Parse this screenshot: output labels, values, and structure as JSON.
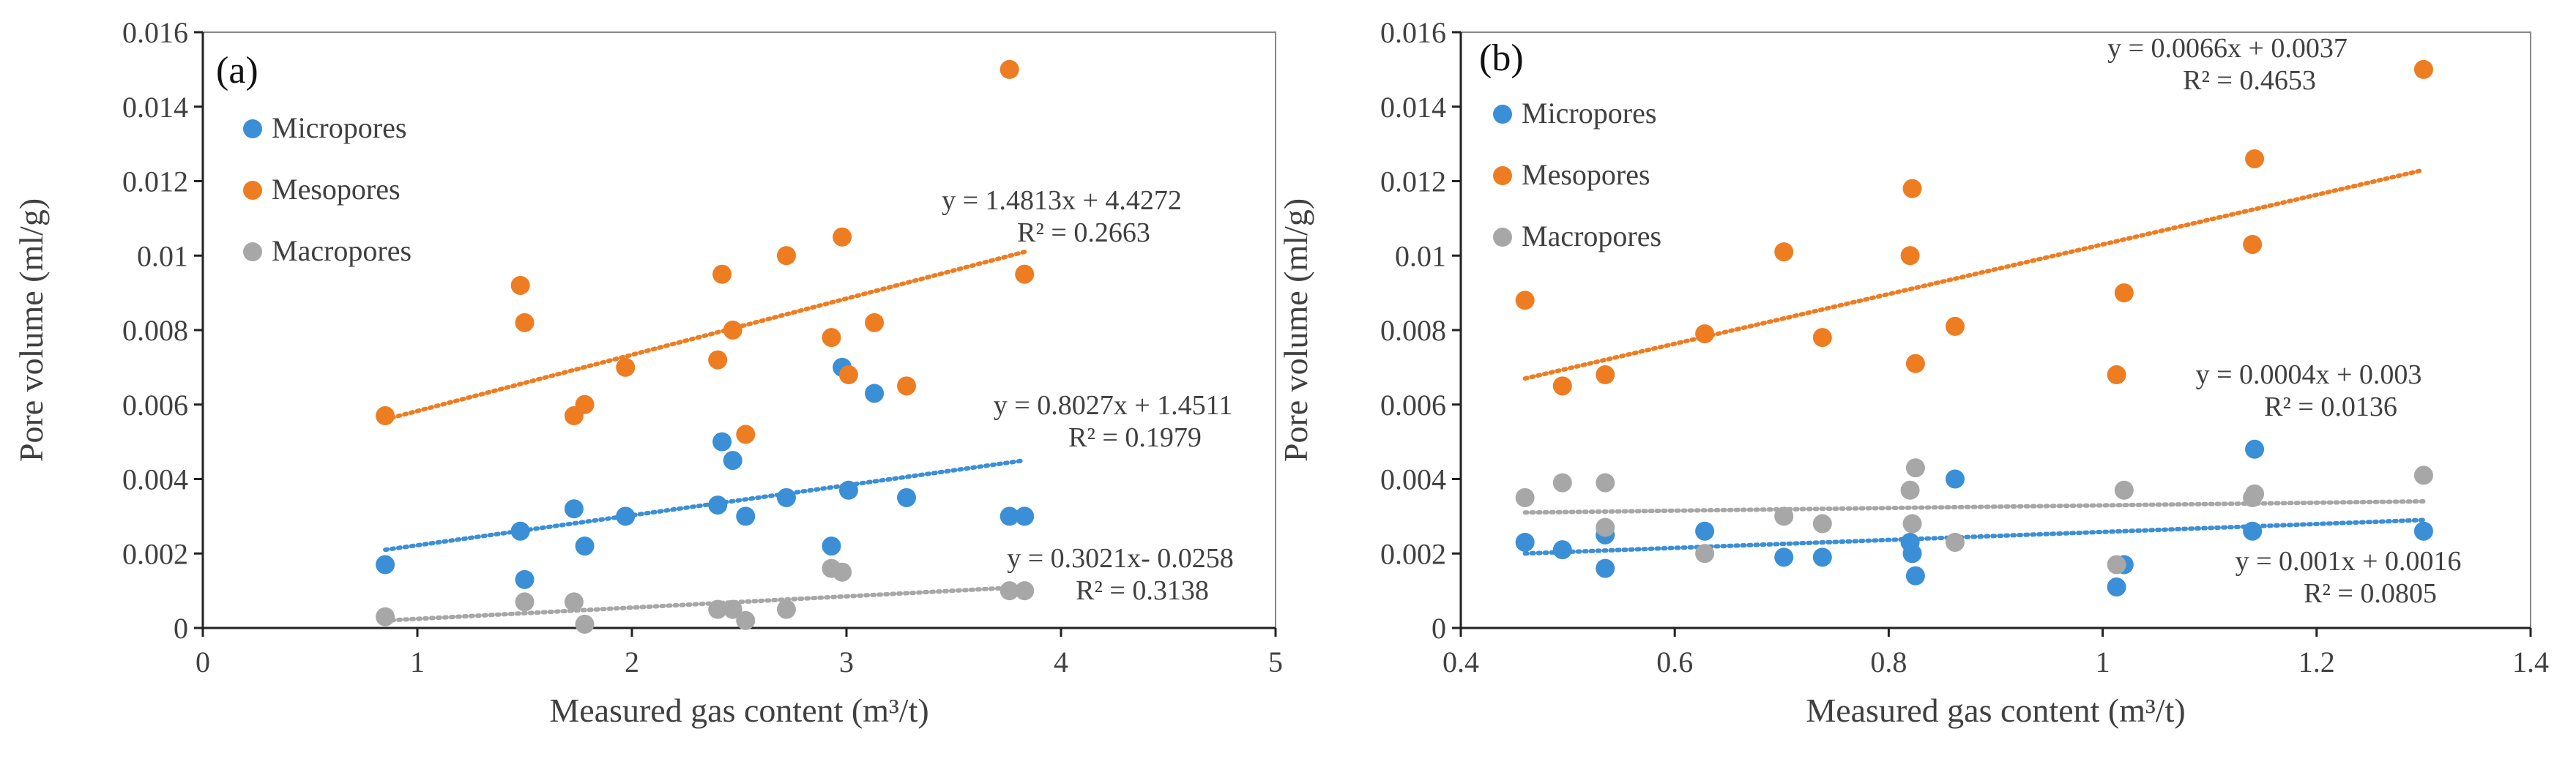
{
  "chart_data": [
    {
      "type": "scatter",
      "panel_label": "(a)",
      "xlabel": "Measured gas content (m³/t)",
      "ylabel": "Pore volume (ml/g)",
      "xlim": [
        0,
        5
      ],
      "ylim": [
        0,
        0.016
      ],
      "x_ticks": [
        0,
        1,
        2,
        3,
        4,
        5
      ],
      "x_tick_labels": [
        "0",
        "1",
        "2",
        "3",
        "4",
        "5"
      ],
      "y_ticks": [
        0,
        0.002,
        0.004,
        0.006,
        0.008,
        0.01,
        0.012,
        0.014,
        0.016
      ],
      "y_tick_labels": [
        "0",
        "0.002",
        "0.004",
        "0.006",
        "0.008",
        "0.01",
        "0.012",
        "0.014",
        "0.016"
      ],
      "legend": [
        "Micropores",
        "Mesopores",
        "Macropores"
      ],
      "legend_position": "top-left",
      "series": [
        {
          "name": "Micropores",
          "color": "#3a8fd6",
          "points": [
            [
              0.85,
              0.0017
            ],
            [
              1.48,
              0.0026
            ],
            [
              1.5,
              0.0013
            ],
            [
              1.73,
              0.0032
            ],
            [
              1.78,
              0.0022
            ],
            [
              1.97,
              0.003
            ],
            [
              2.4,
              0.0033
            ],
            [
              2.42,
              0.005
            ],
            [
              2.47,
              0.0045
            ],
            [
              2.53,
              0.003
            ],
            [
              2.72,
              0.0035
            ],
            [
              2.93,
              0.0022
            ],
            [
              2.98,
              0.007
            ],
            [
              3.01,
              0.0037
            ],
            [
              3.13,
              0.0063
            ],
            [
              3.28,
              0.0035
            ],
            [
              3.76,
              0.003
            ],
            [
              3.83,
              0.003
            ]
          ],
          "trendline": {
            "x_range": [
              0.85,
              3.83
            ],
            "y_range": [
              0.0021,
              0.0045
            ]
          },
          "equation": "y = 0.8027x + 1.4511",
          "r2": "R² = 0.1979"
        },
        {
          "name": "Mesopores",
          "color": "#ee7d22",
          "points": [
            [
              0.85,
              0.0057
            ],
            [
              1.48,
              0.0092
            ],
            [
              1.5,
              0.0082
            ],
            [
              1.73,
              0.0057
            ],
            [
              1.78,
              0.006
            ],
            [
              1.97,
              0.007
            ],
            [
              2.4,
              0.0072
            ],
            [
              2.42,
              0.0095
            ],
            [
              2.47,
              0.008
            ],
            [
              2.53,
              0.0052
            ],
            [
              2.72,
              0.01
            ],
            [
              2.93,
              0.0078
            ],
            [
              2.98,
              0.0105
            ],
            [
              3.01,
              0.0068
            ],
            [
              3.13,
              0.0082
            ],
            [
              3.28,
              0.0065
            ],
            [
              3.76,
              0.015
            ],
            [
              3.83,
              0.0095
            ]
          ],
          "trendline": {
            "x_range": [
              0.85,
              3.83
            ],
            "y_range": [
              0.0056,
              0.0101
            ]
          },
          "equation": "y = 1.4813x + 4.4272",
          "r2": "R² = 0.2663"
        },
        {
          "name": "Macropores",
          "color": "#a7a7a7",
          "points": [
            [
              0.85,
              0.0003
            ],
            [
              1.5,
              0.0007
            ],
            [
              1.73,
              0.0007
            ],
            [
              1.78,
              0.0001
            ],
            [
              2.4,
              0.0005
            ],
            [
              2.47,
              0.0005
            ],
            [
              2.53,
              0.0002
            ],
            [
              2.72,
              0.0005
            ],
            [
              2.93,
              0.0016
            ],
            [
              2.98,
              0.0015
            ],
            [
              3.76,
              0.001
            ],
            [
              3.83,
              0.001
            ]
          ],
          "trendline": {
            "x_range": [
              0.85,
              3.83
            ],
            "y_range": [
              0.0002,
              0.0011
            ]
          },
          "equation": "y = 0.3021x- 0.0258",
          "r2": "R² = 0.3138"
        }
      ]
    },
    {
      "type": "scatter",
      "panel_label": "(b)",
      "xlabel": "Measured gas content (m³/t)",
      "ylabel": "Pore volume (ml/g)",
      "xlim": [
        0.4,
        1.4
      ],
      "ylim": [
        0,
        0.016
      ],
      "x_ticks": [
        0.4,
        0.6,
        0.8,
        1.0,
        1.2,
        1.4
      ],
      "x_tick_labels": [
        "0.4",
        "0.6",
        "0.8",
        "1",
        "1.2",
        "1.4"
      ],
      "y_ticks": [
        0,
        0.002,
        0.004,
        0.006,
        0.008,
        0.01,
        0.012,
        0.014,
        0.016
      ],
      "y_tick_labels": [
        "0",
        "0.002",
        "0.004",
        "0.006",
        "0.008",
        "0.01",
        "0.012",
        "0.014",
        "0.016"
      ],
      "legend": [
        "Micropores",
        "Mesopores",
        "Macropores"
      ],
      "legend_position": "top-left",
      "series": [
        {
          "name": "Micropores",
          "color": "#3a8fd6",
          "points": [
            [
              0.46,
              0.0023
            ],
            [
              0.495,
              0.0021
            ],
            [
              0.535,
              0.0016
            ],
            [
              0.535,
              0.0025
            ],
            [
              0.628,
              0.0026
            ],
            [
              0.702,
              0.0019
            ],
            [
              0.738,
              0.0019
            ],
            [
              0.82,
              0.0023
            ],
            [
              0.822,
              0.002
            ],
            [
              0.825,
              0.0014
            ],
            [
              0.862,
              0.004
            ],
            [
              1.013,
              0.0011
            ],
            [
              1.02,
              0.0017
            ],
            [
              1.14,
              0.0026
            ],
            [
              1.142,
              0.0048
            ],
            [
              1.3,
              0.0026
            ]
          ],
          "trendline": {
            "x_range": [
              0.46,
              1.3
            ],
            "y_range": [
              0.002,
              0.0029
            ]
          },
          "equation": "y = 0.001x + 0.0016",
          "r2": "R² = 0.0805"
        },
        {
          "name": "Mesopores",
          "color": "#ee7d22",
          "points": [
            [
              0.46,
              0.0088
            ],
            [
              0.495,
              0.0065
            ],
            [
              0.535,
              0.0068
            ],
            [
              0.628,
              0.0079
            ],
            [
              0.702,
              0.0101
            ],
            [
              0.738,
              0.0078
            ],
            [
              0.82,
              0.01
            ],
            [
              0.822,
              0.0118
            ],
            [
              0.825,
              0.0071
            ],
            [
              0.862,
              0.0081
            ],
            [
              1.013,
              0.0068
            ],
            [
              1.02,
              0.009
            ],
            [
              1.14,
              0.0103
            ],
            [
              1.142,
              0.0126
            ],
            [
              1.3,
              0.015
            ]
          ],
          "trendline": {
            "x_range": [
              0.46,
              1.3
            ],
            "y_range": [
              0.0067,
              0.0123
            ]
          },
          "equation": "y = 0.0066x + 0.0037",
          "r2": "R² = 0.4653"
        },
        {
          "name": "Macropores",
          "color": "#a7a7a7",
          "points": [
            [
              0.46,
              0.0035
            ],
            [
              0.495,
              0.0039
            ],
            [
              0.535,
              0.0039
            ],
            [
              0.535,
              0.0027
            ],
            [
              0.628,
              0.002
            ],
            [
              0.702,
              0.003
            ],
            [
              0.738,
              0.0028
            ],
            [
              0.82,
              0.0037
            ],
            [
              0.822,
              0.0028
            ],
            [
              0.825,
              0.0043
            ],
            [
              0.862,
              0.0023
            ],
            [
              1.013,
              0.0017
            ],
            [
              1.02,
              0.0037
            ],
            [
              1.14,
              0.0035
            ],
            [
              1.142,
              0.0036
            ],
            [
              1.3,
              0.0041
            ]
          ],
          "trendline": {
            "x_range": [
              0.46,
              1.3
            ],
            "y_range": [
              0.0031,
              0.0034
            ]
          },
          "equation": "y = 0.0004x + 0.003",
          "r2": "R² = 0.0136"
        }
      ]
    }
  ]
}
